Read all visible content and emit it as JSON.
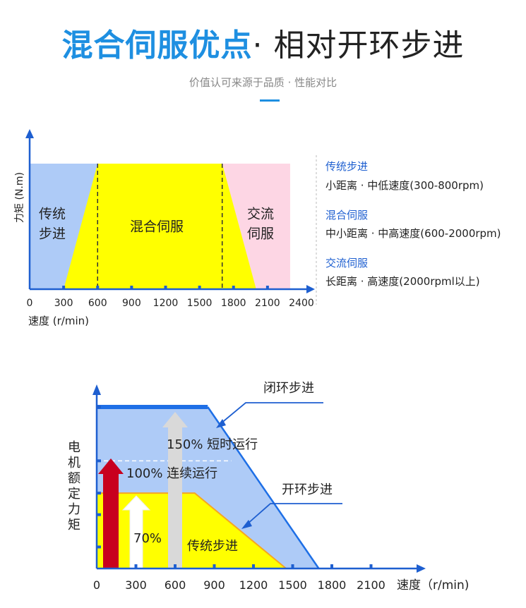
{
  "header": {
    "title_part1": "混合伺服优点",
    "title_part2": "· 相对开环步进",
    "subtitle": "价值认可来源于品质 · 性能对比"
  },
  "colors": {
    "accent_blue": "#1E8FE1",
    "region_blue": "#AECBF7",
    "region_yellow": "#FFFF00",
    "region_pink": "#FDD6E4",
    "axis_blue": "#1E5FD0",
    "arrow_red": "#C8001E",
    "arrow_gray": "#D9D9D9",
    "orange_line": "#F5A623"
  },
  "chart_data": [
    {
      "type": "area",
      "ylabel": "力矩 (N.m)",
      "xlabel": "速度 (r/min)",
      "x_ticks": [
        0,
        300,
        600,
        900,
        1200,
        1500,
        1800,
        2100,
        2400
      ],
      "xlim": [
        0,
        2400
      ],
      "regions": [
        {
          "name": "传统步进",
          "label_lines": [
            "传统",
            "步进"
          ],
          "color": "#AECBF7",
          "from": 0,
          "to": 600
        },
        {
          "name": "混合伺服",
          "label_lines": [
            "混合伺服"
          ],
          "color": "#FFFF00",
          "from": 300,
          "to": 2000
        },
        {
          "name": "交流伺服",
          "label_lines": [
            "交流",
            "伺服"
          ],
          "color": "#FDD6E4",
          "from": 1700,
          "to": 2300
        }
      ],
      "dashed_lines_x": [
        600,
        1700
      ],
      "legend": [
        {
          "title": "传统步进",
          "text": "小距离 · 中低速度(300-800rpm)"
        },
        {
          "title": "混合伺服",
          "text": "中小距离 · 中高速度(600-2000rpm)"
        },
        {
          "title": "交流伺服",
          "text": "长距离 · 高速度(2000rpml以上)"
        }
      ]
    },
    {
      "type": "area",
      "ylabel": "电机额定力矩",
      "xlabel": "速度（r/min)",
      "x_ticks": [
        0,
        300,
        600,
        900,
        1200,
        1500,
        1800,
        2100
      ],
      "xlim": [
        0,
        2400
      ],
      "ylim": [
        0,
        170
      ],
      "series": [
        {
          "name": "闭环步进",
          "points": [
            [
              0,
              150
            ],
            [
              850,
              150
            ],
            [
              1700,
              0
            ]
          ]
        },
        {
          "name": "开环步进",
          "points": [
            [
              0,
              70
            ],
            [
              750,
              70
            ],
            [
              1450,
              0
            ]
          ]
        }
      ],
      "band_labels": [
        "150% 短时运行",
        "100% 连续运行",
        "70%",
        "传统步进"
      ],
      "levels": [
        {
          "label": "150% 短时运行",
          "value": 150
        },
        {
          "label": "100% 连续运行",
          "value": 100
        },
        {
          "label": "70%",
          "value": 70
        }
      ]
    }
  ]
}
